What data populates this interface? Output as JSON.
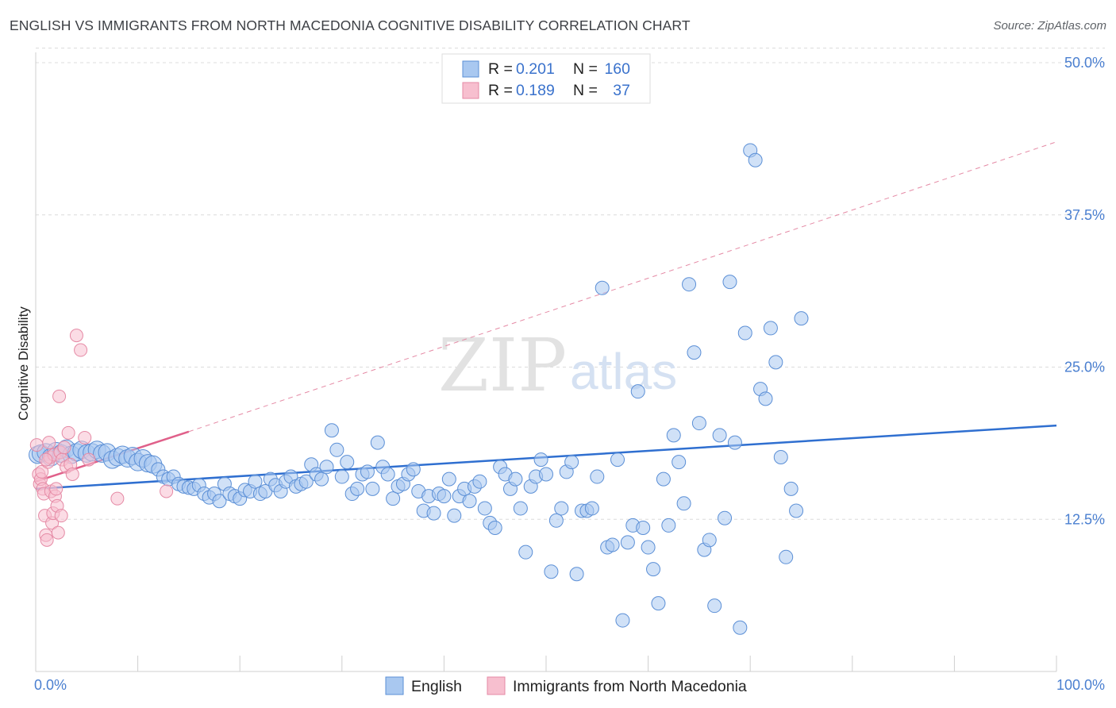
{
  "title": "ENGLISH VS IMMIGRANTS FROM NORTH MACEDONIA COGNITIVE DISABILITY CORRELATION CHART",
  "source": "Source: ZipAtlas.com",
  "watermark": {
    "zip": "ZIP",
    "atlas": "atlas"
  },
  "chart_data": {
    "type": "scatter",
    "ylabel": "Cognitive Disability",
    "xlim": [
      0,
      100
    ],
    "ylim": [
      0,
      50
    ],
    "x_tick_labels": [
      "0.0%",
      "100.0%"
    ],
    "y_ticks": [
      12.5,
      25.0,
      37.5,
      50.0
    ],
    "y_tick_labels": [
      "12.5%",
      "25.0%",
      "37.5%",
      "50.0%"
    ],
    "grid": "horizontal dashed",
    "legend_position": "top-center",
    "top_legend": [
      {
        "r_label": "R =",
        "r_value": "0.201",
        "n_label": "N =",
        "n_value": "160"
      },
      {
        "r_label": "R =",
        "r_value": "0.189",
        "n_label": "N =",
        "n_value": "37"
      }
    ],
    "series": [
      {
        "name": "English",
        "color": "#a9c8f0",
        "stroke": "#5b8fd6",
        "trend": {
          "x": [
            0,
            100
          ],
          "y": [
            15.0,
            20.2
          ],
          "color": "#2f6fd0"
        },
        "points": [
          [
            0.2,
            17.8
          ],
          [
            0.5,
            17.9
          ],
          [
            1.0,
            18.0
          ],
          [
            1.5,
            17.6
          ],
          [
            2.0,
            18.1
          ],
          [
            2.5,
            17.9
          ],
          [
            3.0,
            18.3
          ],
          [
            3.5,
            17.8
          ],
          [
            4.0,
            18.0
          ],
          [
            4.5,
            18.2
          ],
          [
            5.0,
            17.9
          ],
          [
            5.5,
            18.0
          ],
          [
            6.0,
            18.2
          ],
          [
            6.5,
            17.9
          ],
          [
            7.0,
            18.0
          ],
          [
            7.5,
            17.4
          ],
          [
            8.0,
            17.6
          ],
          [
            8.5,
            17.8
          ],
          [
            9.0,
            17.5
          ],
          [
            9.5,
            17.7
          ],
          [
            10.0,
            17.2
          ],
          [
            10.5,
            17.5
          ],
          [
            11.0,
            17.1
          ],
          [
            11.5,
            17.0
          ],
          [
            12.0,
            16.6
          ],
          [
            12.5,
            16.0
          ],
          [
            13.0,
            15.8
          ],
          [
            13.5,
            16.0
          ],
          [
            14.0,
            15.4
          ],
          [
            14.5,
            15.2
          ],
          [
            15.0,
            15.1
          ],
          [
            15.5,
            15.0
          ],
          [
            16.0,
            15.3
          ],
          [
            16.5,
            14.6
          ],
          [
            17.0,
            14.3
          ],
          [
            17.5,
            14.6
          ],
          [
            18.0,
            14.0
          ],
          [
            18.5,
            15.4
          ],
          [
            19.0,
            14.6
          ],
          [
            19.5,
            14.4
          ],
          [
            20.0,
            14.2
          ],
          [
            20.5,
            14.9
          ],
          [
            21.0,
            14.8
          ],
          [
            21.5,
            15.6
          ],
          [
            22.0,
            14.6
          ],
          [
            22.5,
            14.8
          ],
          [
            23.0,
            15.8
          ],
          [
            23.5,
            15.3
          ],
          [
            24.0,
            14.8
          ],
          [
            24.5,
            15.6
          ],
          [
            25.0,
            16.0
          ],
          [
            25.5,
            15.2
          ],
          [
            26.0,
            15.4
          ],
          [
            26.5,
            15.6
          ],
          [
            27.0,
            17.0
          ],
          [
            27.5,
            16.2
          ],
          [
            28.0,
            15.8
          ],
          [
            28.5,
            16.8
          ],
          [
            29.0,
            19.8
          ],
          [
            29.5,
            18.2
          ],
          [
            30.0,
            16.0
          ],
          [
            30.5,
            17.2
          ],
          [
            31.0,
            14.6
          ],
          [
            31.5,
            15.0
          ],
          [
            32.0,
            16.2
          ],
          [
            32.5,
            16.4
          ],
          [
            33.0,
            15.0
          ],
          [
            33.5,
            18.8
          ],
          [
            34.0,
            16.8
          ],
          [
            34.5,
            16.2
          ],
          [
            35.0,
            14.2
          ],
          [
            35.5,
            15.2
          ],
          [
            36.0,
            15.4
          ],
          [
            36.5,
            16.2
          ],
          [
            37.0,
            16.6
          ],
          [
            37.5,
            14.8
          ],
          [
            38.0,
            13.2
          ],
          [
            38.5,
            14.4
          ],
          [
            39.0,
            13.0
          ],
          [
            39.5,
            14.6
          ],
          [
            40.0,
            14.4
          ],
          [
            40.5,
            15.8
          ],
          [
            41.0,
            12.8
          ],
          [
            41.5,
            14.4
          ],
          [
            42.0,
            15.0
          ],
          [
            42.5,
            14.0
          ],
          [
            43.0,
            15.2
          ],
          [
            43.5,
            15.6
          ],
          [
            44.0,
            13.4
          ],
          [
            44.5,
            12.2
          ],
          [
            45.0,
            11.8
          ],
          [
            45.5,
            16.8
          ],
          [
            46.0,
            16.2
          ],
          [
            46.5,
            15.0
          ],
          [
            47.0,
            15.8
          ],
          [
            47.5,
            13.4
          ],
          [
            48.0,
            9.8
          ],
          [
            48.5,
            15.2
          ],
          [
            49.0,
            16.0
          ],
          [
            49.5,
            17.4
          ],
          [
            50.0,
            16.2
          ],
          [
            50.5,
            8.2
          ],
          [
            51.0,
            12.4
          ],
          [
            51.5,
            13.4
          ],
          [
            52.0,
            16.4
          ],
          [
            52.5,
            17.2
          ],
          [
            53.0,
            8.0
          ],
          [
            53.5,
            13.2
          ],
          [
            54.0,
            13.2
          ],
          [
            54.5,
            13.4
          ],
          [
            55.0,
            16.0
          ],
          [
            55.5,
            31.5
          ],
          [
            56.0,
            10.2
          ],
          [
            56.5,
            10.4
          ],
          [
            57.0,
            17.4
          ],
          [
            57.5,
            4.2
          ],
          [
            58.0,
            10.6
          ],
          [
            58.5,
            12.0
          ],
          [
            59.0,
            23.0
          ],
          [
            59.5,
            11.8
          ],
          [
            60.0,
            10.2
          ],
          [
            60.5,
            8.4
          ],
          [
            61.0,
            5.6
          ],
          [
            61.5,
            15.8
          ],
          [
            62.0,
            12.0
          ],
          [
            62.5,
            19.4
          ],
          [
            63.0,
            17.2
          ],
          [
            63.5,
            13.8
          ],
          [
            64.0,
            31.8
          ],
          [
            64.5,
            26.2
          ],
          [
            65.0,
            20.4
          ],
          [
            65.5,
            10.0
          ],
          [
            66.0,
            10.8
          ],
          [
            66.5,
            5.4
          ],
          [
            67.0,
            19.4
          ],
          [
            67.5,
            12.6
          ],
          [
            68.0,
            32.0
          ],
          [
            68.5,
            18.8
          ],
          [
            69.0,
            3.6
          ],
          [
            69.5,
            27.8
          ],
          [
            70.0,
            42.8
          ],
          [
            70.5,
            42.0
          ],
          [
            71.0,
            23.2
          ],
          [
            71.5,
            22.4
          ],
          [
            72.0,
            28.2
          ],
          [
            72.5,
            25.4
          ],
          [
            73.0,
            17.6
          ],
          [
            73.5,
            9.4
          ],
          [
            74.0,
            15.0
          ],
          [
            74.5,
            13.2
          ],
          [
            75.0,
            29.0
          ]
        ]
      },
      {
        "name": "Immigrants from North Macedonia",
        "color": "#f7bfcf",
        "stroke": "#e58aa5",
        "trend": {
          "x": [
            0,
            15
          ],
          "y": [
            15.6,
            19.7
          ],
          "color": "#e0608a"
        },
        "trend_extension": {
          "x": [
            15,
            100
          ],
          "y": [
            19.7,
            43.5
          ],
          "style": "dashed"
        },
        "points": [
          [
            0.1,
            18.6
          ],
          [
            0.3,
            16.2
          ],
          [
            0.4,
            15.4
          ],
          [
            0.5,
            15.8
          ],
          [
            0.6,
            16.4
          ],
          [
            0.7,
            15.0
          ],
          [
            0.8,
            14.6
          ],
          [
            0.9,
            12.8
          ],
          [
            1.0,
            11.2
          ],
          [
            1.1,
            10.8
          ],
          [
            1.2,
            17.2
          ],
          [
            1.3,
            18.8
          ],
          [
            1.4,
            17.6
          ],
          [
            1.5,
            14.8
          ],
          [
            1.6,
            12.2
          ],
          [
            1.7,
            13.0
          ],
          [
            1.8,
            17.8
          ],
          [
            1.9,
            14.4
          ],
          [
            2.0,
            15.0
          ],
          [
            2.1,
            13.6
          ],
          [
            2.2,
            11.4
          ],
          [
            2.3,
            22.6
          ],
          [
            2.4,
            18.0
          ],
          [
            2.5,
            12.8
          ],
          [
            2.6,
            17.4
          ],
          [
            2.8,
            18.4
          ],
          [
            3.0,
            16.8
          ],
          [
            3.2,
            19.6
          ],
          [
            3.4,
            17.0
          ],
          [
            3.6,
            16.2
          ],
          [
            4.0,
            27.6
          ],
          [
            4.4,
            26.4
          ],
          [
            4.8,
            19.2
          ],
          [
            5.2,
            17.4
          ],
          [
            8.0,
            14.2
          ],
          [
            12.8,
            14.8
          ],
          [
            1.0,
            17.4
          ]
        ]
      }
    ]
  }
}
